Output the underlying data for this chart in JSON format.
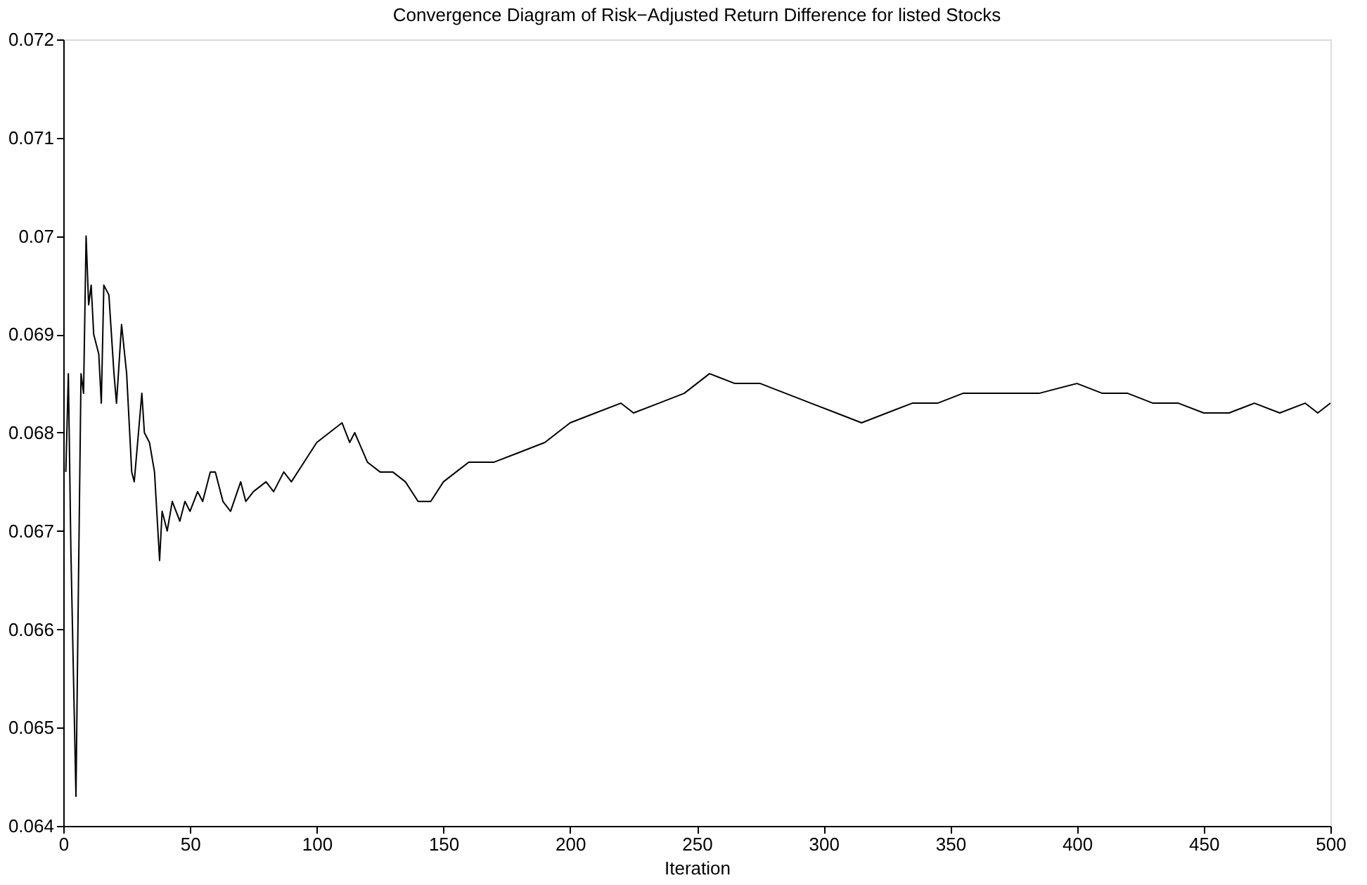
{
  "chart_data": {
    "type": "line",
    "title": "Convergence Diagram of Risk−Adjusted Return Difference for listed Stocks",
    "xlabel": "Iteration",
    "x": [
      1,
      2,
      3,
      5,
      6,
      7,
      8,
      9,
      10,
      11,
      12,
      14,
      15,
      16,
      18,
      20,
      21,
      23,
      25,
      27,
      28,
      30,
      31,
      32,
      34,
      36,
      38,
      39,
      41,
      43,
      46,
      48,
      50,
      53,
      55,
      58,
      60,
      63,
      66,
      70,
      72,
      75,
      80,
      83,
      87,
      90,
      95,
      100,
      105,
      110,
      113,
      115,
      120,
      125,
      130,
      135,
      140,
      145,
      150,
      155,
      160,
      170,
      180,
      190,
      200,
      210,
      220,
      225,
      235,
      245,
      255,
      265,
      275,
      285,
      295,
      305,
      315,
      325,
      335,
      345,
      355,
      365,
      375,
      385,
      400,
      410,
      420,
      430,
      440,
      450,
      460,
      470,
      480,
      490,
      495,
      500
    ],
    "series": [
      {
        "color": "#000000",
        "values": [
          0.0676,
          0.0686,
          0.0668,
          0.0643,
          0.0665,
          0.0686,
          0.0684,
          0.07,
          0.0693,
          0.0695,
          0.069,
          0.0688,
          0.0683,
          0.0695,
          0.0694,
          0.0686,
          0.0683,
          0.0691,
          0.0686,
          0.0676,
          0.0675,
          0.0681,
          0.0684,
          0.068,
          0.0679,
          0.0676,
          0.0667,
          0.0672,
          0.067,
          0.0673,
          0.0671,
          0.0673,
          0.0672,
          0.0674,
          0.0673,
          0.0676,
          0.0676,
          0.0673,
          0.0672,
          0.0675,
          0.0673,
          0.0674,
          0.0675,
          0.0674,
          0.0676,
          0.0675,
          0.0677,
          0.0679,
          0.068,
          0.0681,
          0.0679,
          0.068,
          0.0677,
          0.0676,
          0.0676,
          0.0675,
          0.0673,
          0.0673,
          0.0675,
          0.0676,
          0.0677,
          0.0677,
          0.0678,
          0.0679,
          0.0681,
          0.0682,
          0.0683,
          0.0682,
          0.0683,
          0.0684,
          0.0686,
          0.0685,
          0.0685,
          0.0684,
          0.0683,
          0.0682,
          0.0681,
          0.0682,
          0.0683,
          0.0683,
          0.0684,
          0.0684,
          0.0684,
          0.0684,
          0.0685,
          0.0684,
          0.0684,
          0.0683,
          0.0683,
          0.0682,
          0.0682,
          0.0683,
          0.0682,
          0.0683,
          0.0682,
          0.0683
        ]
      }
    ],
    "xlim": [
      0,
      500
    ],
    "xticks": [
      0,
      50,
      100,
      150,
      200,
      250,
      300,
      350,
      400,
      450,
      500
    ],
    "ylim": [
      0.064,
      0.072
    ],
    "yticks": [
      0.064,
      0.065,
      0.066,
      0.067,
      0.068,
      0.069,
      0.07,
      0.071,
      0.072
    ],
    "grid": false,
    "marker": "none",
    "line_style": "solid"
  }
}
